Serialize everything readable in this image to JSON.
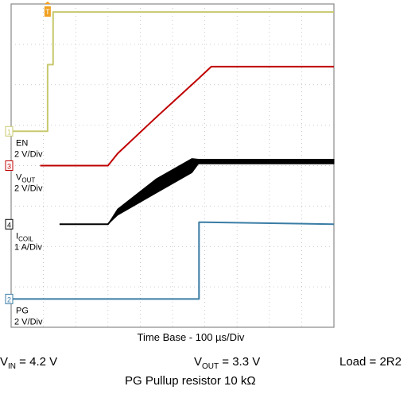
{
  "chart_data": {
    "type": "line",
    "x_axis": {
      "label": "Time Base - 100 µs/Div",
      "range": [
        0,
        10
      ],
      "unit": "div"
    },
    "y_axis": {
      "range": [
        0,
        8
      ],
      "unit": "div"
    },
    "grid": true,
    "channels": [
      {
        "marker": "1",
        "name": "EN",
        "scale": "2 V/Div",
        "color": "#c8c86e",
        "points": [
          [
            0.05,
            4.85
          ],
          [
            1.13,
            4.85
          ],
          [
            1.13,
            6.5
          ],
          [
            1.3,
            6.5
          ],
          [
            1.3,
            7.8
          ],
          [
            10.0,
            7.8
          ]
        ]
      },
      {
        "marker": "3",
        "name": "VOUT",
        "name_sub": "OUT",
        "scale": "2 V/Div",
        "color": "#c00000",
        "points": [
          [
            0.9,
            4.0
          ],
          [
            3.0,
            4.0
          ],
          [
            3.3,
            4.3
          ],
          [
            4.5,
            5.2
          ],
          [
            5.8,
            6.15
          ],
          [
            6.2,
            6.45
          ],
          [
            10.0,
            6.45
          ]
        ]
      },
      {
        "marker": "4",
        "name": "ICOIL",
        "name_sub": "COIL",
        "scale": "1 A/Div",
        "color": "#000000",
        "points": [
          [
            1.5,
            2.55
          ],
          [
            3.0,
            2.55
          ],
          [
            3.3,
            2.85
          ],
          [
            4.5,
            3.5
          ],
          [
            5.6,
            4.0
          ],
          [
            5.8,
            4.1
          ],
          [
            10.0,
            4.1
          ]
        ],
        "ripple": 0.25
      },
      {
        "marker": "2",
        "name": "PG",
        "scale": "2 V/Div",
        "color": "#3a7ca5",
        "points": [
          [
            0.0,
            0.7
          ],
          [
            5.82,
            0.7
          ],
          [
            5.82,
            2.6
          ],
          [
            6.0,
            2.6
          ],
          [
            10.0,
            2.55
          ]
        ]
      }
    ],
    "trigger_marker": "T",
    "conditions": {
      "vin_main": "V",
      "vin_sub": "IN",
      "vin_value": " = 4.2 V",
      "vout_main": "V",
      "vout_sub": "OUT",
      "vout_value": " = 3.3 V",
      "load": "Load = 2R2",
      "pullup": "PG Pullup resistor 10 kΩ"
    }
  }
}
